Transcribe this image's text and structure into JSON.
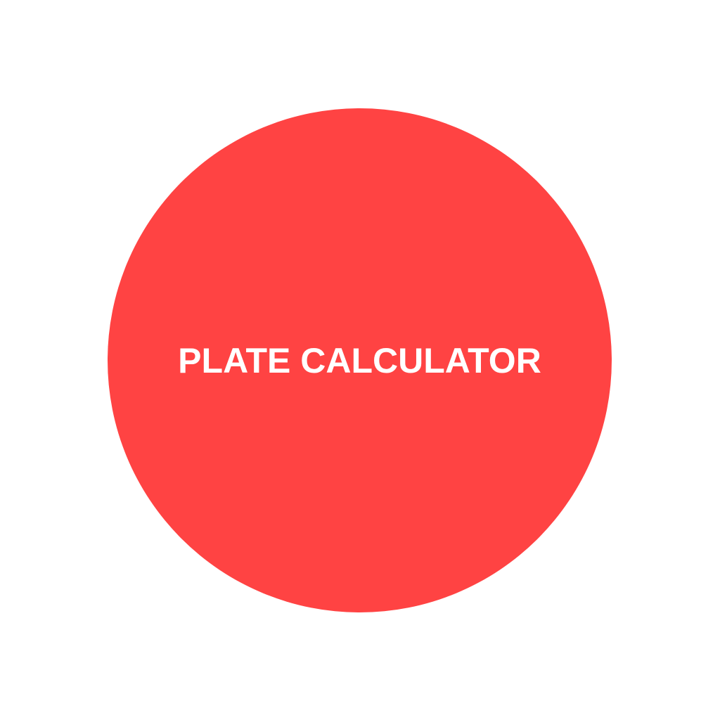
{
  "logo": {
    "title": "PLATE CALCULATOR",
    "circle_color": "#FF4343",
    "text_color": "#FFFFFF",
    "background_color": "#FFFFFF"
  }
}
